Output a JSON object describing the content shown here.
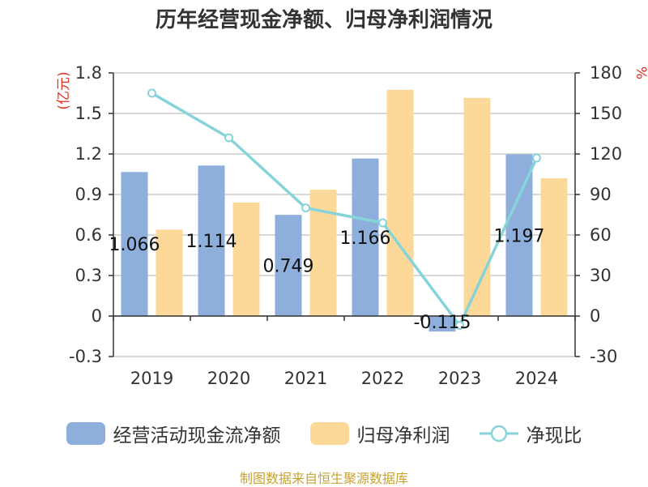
{
  "title": "历年经营现金净额、归母净利润情况",
  "source_text": "制图数据来自恒生聚源数据库",
  "colors": {
    "cash": "#8eaedb",
    "profit": "#fcd899",
    "ratio": "#86d3d9",
    "unit": "#e0301e",
    "axis": "#333333",
    "grid": "#cccccc"
  },
  "chart_data": {
    "type": "bar",
    "categories": [
      "2019",
      "2020",
      "2021",
      "2022",
      "2023",
      "2024"
    ],
    "left_axis": {
      "unit": "(亿元)",
      "ticks": [
        "1.8",
        "1.5",
        "1.2",
        "0.9",
        "0.6",
        "0.3",
        "0",
        "-0.3"
      ],
      "ylim": [
        -0.3,
        1.8
      ]
    },
    "right_axis": {
      "unit": "%",
      "ticks": [
        "180",
        "150",
        "120",
        "90",
        "60",
        "30",
        "0",
        "-30"
      ],
      "ylim": [
        -30,
        180
      ]
    },
    "series": [
      {
        "name": "经营活动现金流净额",
        "type": "bar",
        "axis": "left",
        "values": [
          1.066,
          1.114,
          0.749,
          1.166,
          -0.115,
          1.197
        ],
        "labels": [
          "1.066",
          "1.114",
          "0.749",
          "1.166",
          "-0.115",
          "1.197"
        ]
      },
      {
        "name": "归母净利润",
        "type": "bar",
        "axis": "left",
        "values": [
          0.64,
          0.84,
          0.935,
          1.675,
          1.615,
          1.02
        ]
      },
      {
        "name": "净现比",
        "type": "line",
        "axis": "right",
        "values": [
          165,
          132,
          80,
          69,
          -7,
          117
        ]
      }
    ],
    "grid": true,
    "legend_position": "bottom"
  }
}
